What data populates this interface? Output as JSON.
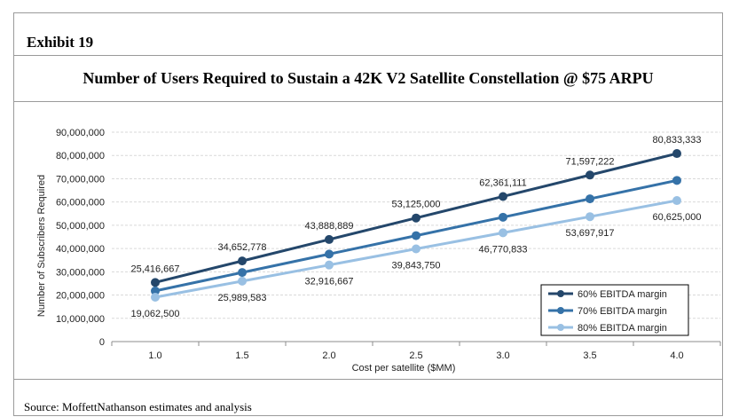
{
  "exhibit_label": "Exhibit 19",
  "source_note": "Source: MoffettNathanson estimates and analysis",
  "chart_data": {
    "type": "line",
    "title": "Number of Users Required to Sustain a 42K V2 Satellite Constellation @ $75 ARPU",
    "xlabel": "Cost per satellite ($MM)",
    "ylabel": "Number of Subscribers Required",
    "ylim": [
      0,
      90000000
    ],
    "yticks": [
      0,
      10000000,
      20000000,
      30000000,
      40000000,
      50000000,
      60000000,
      70000000,
      80000000,
      90000000
    ],
    "ytick_labels": [
      "0",
      "10,000,000",
      "20,000,000",
      "30,000,000",
      "40,000,000",
      "50,000,000",
      "60,000,000",
      "70,000,000",
      "80,000,000",
      "90,000,000"
    ],
    "categories": [
      "1.0",
      "1.5",
      "2.0",
      "2.5",
      "3.0",
      "3.5",
      "4.0"
    ],
    "series": [
      {
        "name": "60% EBITDA margin",
        "color": "#24476b",
        "values": [
          25416667,
          34652778,
          43888889,
          53125000,
          62361111,
          71597222,
          80833333
        ],
        "labels": [
          "25,416,667",
          "34,652,778",
          "43,888,889",
          "53,125,000",
          "62,361,111",
          "71,597,222",
          "80,833,333"
        ],
        "label_position": "above"
      },
      {
        "name": "70% EBITDA margin",
        "color": "#3572a8",
        "values": [
          21785714,
          29702381,
          37619048,
          45535714,
          53452381,
          61369048,
          69285714
        ],
        "labels": [],
        "label_position": "none"
      },
      {
        "name": "80% EBITDA margin",
        "color": "#99c0e3",
        "values": [
          19062500,
          25989583,
          32916667,
          39843750,
          46770833,
          53697917,
          60625000
        ],
        "labels": [
          "19,062,500",
          "25,989,583",
          "32,916,667",
          "39,843,750",
          "46,770,833",
          "53,697,917",
          "60,625,000"
        ],
        "label_position": "below"
      }
    ],
    "grid": true,
    "legend_position": "bottom-right"
  }
}
